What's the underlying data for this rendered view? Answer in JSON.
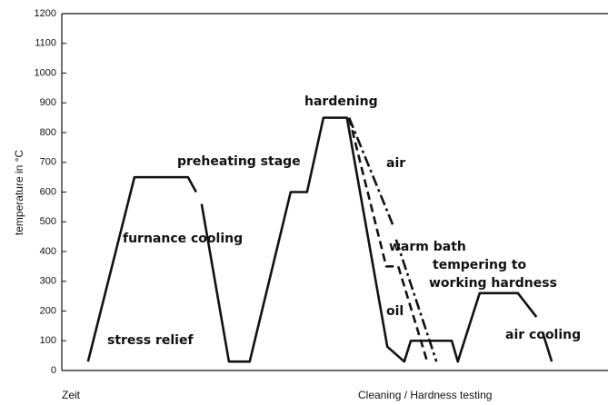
{
  "chart_data": {
    "type": "line",
    "ylabel": "temperature in °C",
    "x_label_left": "Zeit",
    "x_label_right": "Cleaning / Hardness testing",
    "ylim": [
      0,
      1200
    ],
    "yticks": [
      0,
      100,
      200,
      300,
      400,
      500,
      600,
      700,
      800,
      900,
      1000,
      1100,
      1200
    ],
    "xlim": [
      0,
      100
    ],
    "color": "#111111",
    "series": [
      {
        "style": "solid",
        "x": [
          4.8,
          13.3,
          23.1,
          24.6,
          24.6,
          25.6,
          30.6,
          34.4,
          41.9,
          44.9,
          47.9,
          52.2,
          59.6,
          62.7,
          63.9,
          71.4,
          72.5,
          76.5,
          83.5,
          86.9,
          86.9,
          88.0,
          89.7
        ],
        "values": [
          30,
          650,
          650,
          600,
          null,
          560,
          30,
          30,
          600,
          600,
          850,
          850,
          80,
          30,
          100,
          100,
          30,
          260,
          260,
          180,
          null,
          130,
          30
        ]
      },
      {
        "style": "dashed",
        "x": [
          52.6,
          59.4,
          61.6,
          66.9
        ],
        "values": [
          850,
          350,
          350,
          30
        ]
      },
      {
        "style": "dashdot",
        "x": [
          52.6,
          60.6,
          60.6,
          61.2,
          68.6
        ],
        "values": [
          850,
          490,
          null,
          440,
          30
        ]
      }
    ],
    "annotations": [
      "hardening",
      "preheating stage",
      "air",
      "furnance cooling",
      "warm bath",
      "tempering to",
      "working hardness",
      "oil",
      "air cooling",
      "stress relief"
    ]
  }
}
